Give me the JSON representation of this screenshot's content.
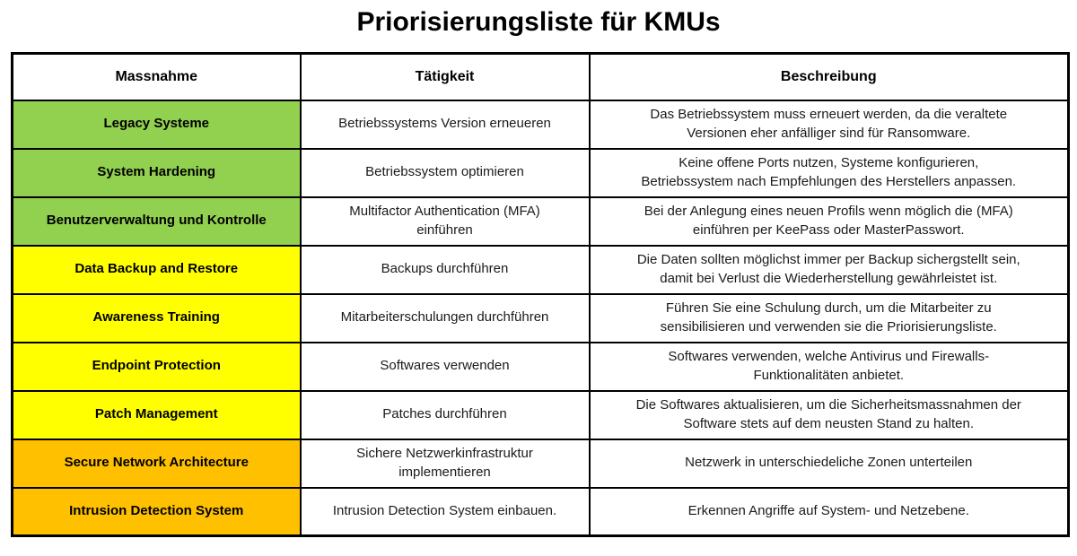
{
  "title": "Priorisierungsliste für KMUs",
  "table": {
    "headers": {
      "massnahme": "Massnahme",
      "taetigkeit": "Tätigkeit",
      "beschreibung": "Beschreibung"
    },
    "priority_colors": {
      "green": "#92D050",
      "yellow": "#FFFF00",
      "orange": "#FFC000"
    },
    "rows": [
      {
        "massnahme": "Legacy Systeme",
        "taetigkeit": "Betriebssystems Version erneueren",
        "beschreibung": "Das Betriebssystem muss erneuert werden, da die veraltete\nVersionen eher anfälliger sind für Ransomware.",
        "color": "#92D050"
      },
      {
        "massnahme": "System Hardening",
        "taetigkeit": "Betriebssystem optimieren",
        "beschreibung": "Keine offene Ports nutzen, Systeme konfigurieren,\nBetriebssystem nach Empfehlungen des Herstellers anpassen.",
        "color": "#92D050"
      },
      {
        "massnahme": "Benutzerverwaltung und Kontrolle",
        "taetigkeit": "Multifactor Authentication (MFA)\neinführen",
        "beschreibung": "Bei der Anlegung eines neuen Profils wenn möglich die (MFA)\neinführen per KeePass oder MasterPasswort.",
        "color": "#92D050"
      },
      {
        "massnahme": "Data Backup and Restore",
        "taetigkeit": "Backups durchführen",
        "beschreibung": "Die Daten sollten möglichst immer per Backup sichergstellt sein,\ndamit bei Verlust die Wiederherstellung gewährleistet ist.",
        "color": "#FFFF00"
      },
      {
        "massnahme": "Awareness Training",
        "taetigkeit": "Mitarbeiterschulungen durchführen",
        "beschreibung": "Führen Sie eine Schulung durch, um die Mitarbeiter zu\nsensibilisieren und verwenden sie die Priorisierungsliste.",
        "color": "#FFFF00"
      },
      {
        "massnahme": "Endpoint Protection",
        "taetigkeit": "Softwares verwenden",
        "beschreibung": "Softwares verwenden, welche Antivirus und Firewalls-\nFunktionalitäten anbietet.",
        "color": "#FFFF00"
      },
      {
        "massnahme": "Patch Management",
        "taetigkeit": "Patches durchführen",
        "beschreibung": "Die Softwares aktualisieren, um die Sicherheitsmassnahmen der\nSoftware stets auf dem neusten Stand zu halten.",
        "color": "#FFFF00"
      },
      {
        "massnahme": "Secure Network Architecture",
        "taetigkeit": "Sichere Netzwerkinfrastruktur\nimplementieren",
        "beschreibung": "Netzwerk in unterschiedeliche Zonen unterteilen",
        "color": "#FFC000"
      },
      {
        "massnahme": "Intrusion Detection System",
        "taetigkeit": "Intrusion Detection System einbauen.",
        "beschreibung": "Erkennen Angriffe auf System- und Netzebene.",
        "color": "#FFC000"
      }
    ]
  }
}
